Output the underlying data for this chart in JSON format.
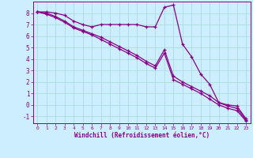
{
  "background_color": "#cceeff",
  "grid_color": "#aadddd",
  "line_color": "#880088",
  "xlabel": "Windchill (Refroidissement éolien,°C)",
  "xlabel_color": "#880088",
  "tick_color": "#880088",
  "xlim": [
    -0.5,
    23.5
  ],
  "ylim": [
    -1.6,
    9.0
  ],
  "yticks": [
    -1,
    0,
    1,
    2,
    3,
    4,
    5,
    6,
    7,
    8
  ],
  "xticks": [
    0,
    1,
    2,
    3,
    4,
    5,
    6,
    7,
    8,
    9,
    10,
    11,
    12,
    13,
    14,
    15,
    16,
    17,
    18,
    19,
    20,
    21,
    22,
    23
  ],
  "series1_x": [
    0,
    1,
    2,
    3,
    4,
    5,
    6,
    7,
    8,
    9,
    10,
    11,
    12,
    13,
    14,
    15,
    16,
    17,
    18,
    19,
    20,
    21,
    22,
    23
  ],
  "series1_y": [
    8.1,
    8.1,
    8.0,
    7.8,
    7.3,
    7.0,
    6.8,
    7.0,
    7.0,
    7.0,
    7.0,
    7.0,
    6.8,
    6.8,
    8.5,
    8.7,
    5.3,
    4.2,
    2.7,
    1.8,
    0.2,
    0.0,
    -0.1,
    -1.2
  ],
  "series2_x": [
    0,
    1,
    2,
    3,
    4,
    5,
    6,
    7,
    8,
    9,
    10,
    11,
    12,
    13,
    14,
    15,
    16,
    17,
    18,
    19,
    20,
    21,
    22,
    23
  ],
  "series2_y": [
    8.1,
    8.0,
    7.7,
    7.3,
    6.8,
    6.5,
    6.2,
    5.9,
    5.5,
    5.1,
    4.7,
    4.3,
    3.8,
    3.4,
    4.8,
    2.5,
    2.0,
    1.6,
    1.2,
    0.8,
    0.2,
    -0.1,
    -0.3,
    -1.3
  ],
  "series3_x": [
    0,
    1,
    2,
    3,
    4,
    5,
    6,
    7,
    8,
    9,
    10,
    11,
    12,
    13,
    14,
    15,
    16,
    17,
    18,
    19,
    20,
    21,
    22,
    23
  ],
  "series3_y": [
    8.1,
    7.9,
    7.6,
    7.2,
    6.7,
    6.4,
    6.1,
    5.7,
    5.3,
    4.9,
    4.5,
    4.1,
    3.6,
    3.2,
    4.5,
    2.2,
    1.8,
    1.4,
    1.0,
    0.5,
    0.0,
    -0.3,
    -0.5,
    -1.4
  ]
}
